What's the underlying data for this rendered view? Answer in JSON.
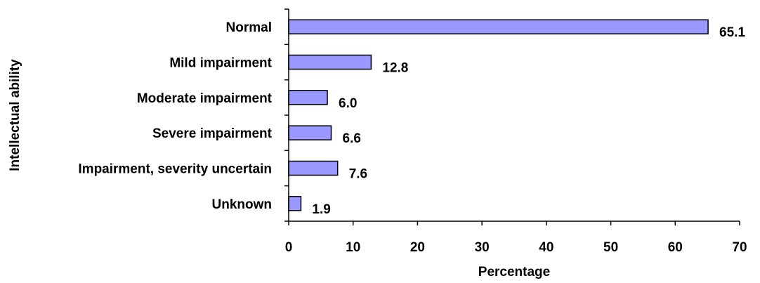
{
  "chart_data": {
    "type": "bar",
    "orientation": "horizontal",
    "categories": [
      "Normal",
      "Mild impairment",
      "Moderate impairment",
      "Severe impairment",
      "Impairment, severity uncertain",
      "Unknown"
    ],
    "values": [
      65.1,
      12.8,
      6.0,
      6.6,
      7.6,
      1.9
    ],
    "value_labels": [
      "65.1",
      "12.8",
      "6.0",
      "6.6",
      "7.6",
      "1.9"
    ],
    "xlabel": "Percentage",
    "ylabel": "Intellectual ability",
    "xlim": [
      0,
      70
    ],
    "xticks": [
      "0",
      "10",
      "20",
      "30",
      "40",
      "50",
      "60",
      "70"
    ],
    "grid": false,
    "legend": "none",
    "bar_color": "#9999ff"
  }
}
